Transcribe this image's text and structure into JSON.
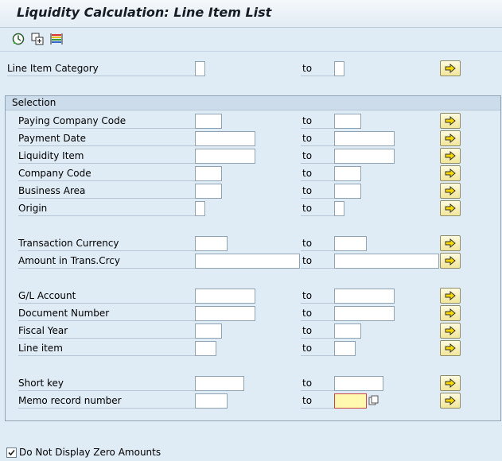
{
  "title": "Liquidity Calculation: Line Item List",
  "toolbar": {
    "icons": [
      "execute-icon",
      "copy-variant-icon",
      "multicolor-list-icon"
    ]
  },
  "top_row": {
    "label": "Line Item Category",
    "to_label": "to"
  },
  "selection": {
    "header": "Selection",
    "rows": [
      {
        "label": "Paying Company Code",
        "to": "to"
      },
      {
        "label": "Payment Date",
        "to": "to"
      },
      {
        "label": "Liquidity Item",
        "to": "to"
      },
      {
        "label": "Company Code",
        "to": "to"
      },
      {
        "label": "Business Area",
        "to": "to"
      },
      {
        "label": "Origin",
        "to": "to"
      },
      {
        "label": "Transaction Currency",
        "to": "to"
      },
      {
        "label": "Amount in Trans.Crcy",
        "to": "to"
      },
      {
        "label": "G/L Account",
        "to": "to"
      },
      {
        "label": "Document Number",
        "to": "to"
      },
      {
        "label": "Fiscal Year",
        "to": "to"
      },
      {
        "label": "Line item",
        "to": "to"
      },
      {
        "label": "Short key",
        "to": "to"
      },
      {
        "label": "Memo record number",
        "to": "to"
      }
    ]
  },
  "checkbox": {
    "label": "Do Not Display Zero Amounts",
    "checked": true
  },
  "colors": {
    "background": "#dfebf5",
    "button_fill": "#f2e69a",
    "active_field": "#fff9b0"
  }
}
